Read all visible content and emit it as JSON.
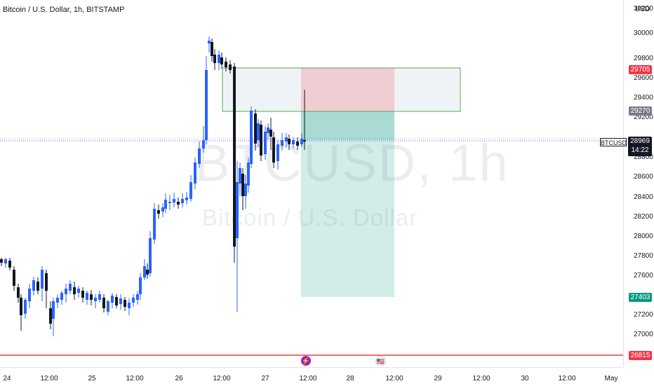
{
  "header": {
    "title": "Bitcoin / U.S. Dollar, 1h, BITSTAMP"
  },
  "watermark": {
    "symbol": "BTCUSD, 1h",
    "name": "Bitcoin / U.S. Dollar"
  },
  "price_scale": {
    "currency": "USD",
    "ticks": [
      "30200",
      "30000",
      "29800",
      "29600",
      "29400",
      "29200",
      "28800",
      "28600",
      "28400",
      "28200",
      "28000",
      "27800",
      "27600",
      "27200",
      "27000"
    ],
    "tags": {
      "stop": {
        "value": "29705",
        "color": "#f23645"
      },
      "entry": {
        "value": "29270",
        "color": "#787b86"
      },
      "target": {
        "value": "27403",
        "color": "#089981"
      },
      "support": {
        "value": "26815",
        "color": "#f23645"
      }
    },
    "ticker": {
      "symbol": "BTCUSD",
      "price": "28969",
      "countdown": "14:22"
    }
  },
  "time_scale": {
    "ticks": [
      "24",
      "12:00",
      "25",
      "12:00",
      "26",
      "12:00",
      "27",
      "12:00",
      "28",
      "12:00",
      "29",
      "12:00",
      "30",
      "12:00",
      "May"
    ]
  },
  "events": {
    "flash": "⚡",
    "flag": "🇺🇸"
  },
  "colors": {
    "up": "#2962ff",
    "down": "#131722",
    "stop_zone": "#f23645",
    "target_zone": "#089981",
    "support_line": "#f23645"
  }
}
